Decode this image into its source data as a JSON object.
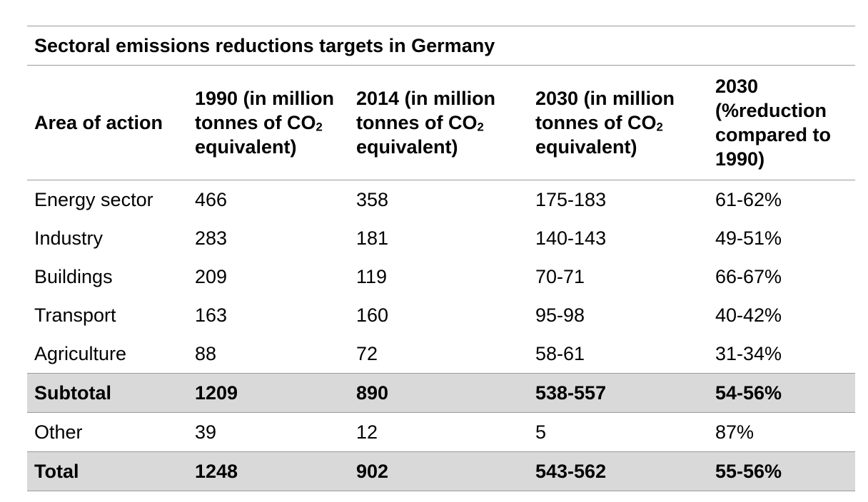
{
  "table": {
    "title": "Sectoral emissions reductions targets in Germany",
    "headers": [
      {
        "pre": "Area of action",
        "sub": "",
        "post": ""
      },
      {
        "pre": "1990 (in million tonnes of CO",
        "sub": "2",
        "post": " equivalent)"
      },
      {
        "pre": "2014 (in million tonnes of CO",
        "sub": "2",
        "post": " equivalent)"
      },
      {
        "pre": "2030 (in million tonnes of CO",
        "sub": "2",
        "post": " equivalent)"
      },
      {
        "pre": "2030 (%reduction compared to 1990)",
        "sub": "",
        "post": ""
      }
    ],
    "rows": [
      {
        "cells": [
          "Energy sector",
          "466",
          "358",
          "175-183",
          "61-62%"
        ]
      },
      {
        "cells": [
          "Industry",
          "283",
          "181",
          "140-143",
          "49-51%"
        ]
      },
      {
        "cells": [
          "Buildings",
          "209",
          "119",
          "70-71",
          "66-67%"
        ]
      },
      {
        "cells": [
          "Transport",
          "163",
          "160",
          "95-98",
          "40-42%"
        ]
      },
      {
        "cells": [
          "Agriculture",
          "88",
          "72",
          "58-61",
          "31-34%"
        ]
      },
      {
        "cells": [
          "Subtotal",
          "1209",
          "890",
          "538-557",
          "54-56%"
        ]
      },
      {
        "cells": [
          "Other",
          "39",
          "12",
          "5",
          "87%"
        ]
      },
      {
        "cells": [
          "Total",
          "1248",
          "902",
          "543-562",
          "55-56%"
        ]
      }
    ]
  }
}
